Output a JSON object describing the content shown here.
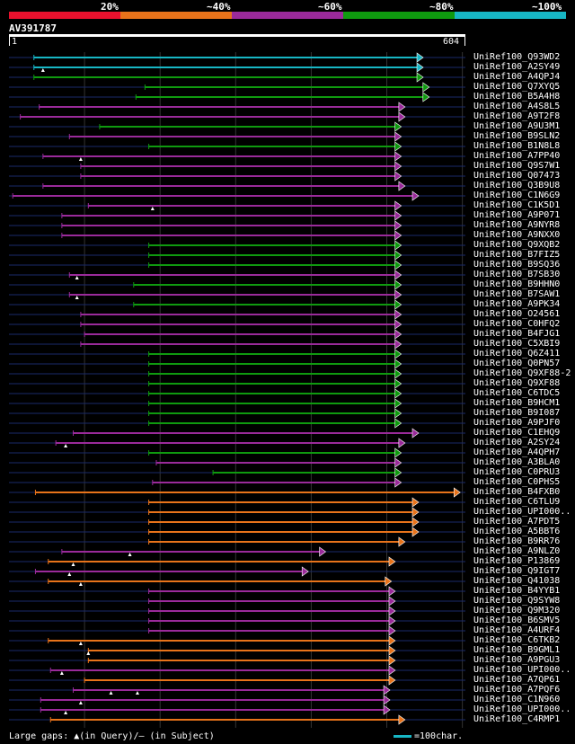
{
  "legend": {
    "labels": [
      "20%",
      "~40%",
      "~60%",
      "~80%",
      "~100%"
    ],
    "colors": [
      "#e8112d",
      "#e8731a",
      "#9a2a9a",
      "#0f9a0f",
      "#17b6c4"
    ]
  },
  "query": {
    "id": "AV391787",
    "start_label": "1",
    "end_label": "604",
    "length": 604
  },
  "hits": [
    {
      "name": "UniRef100_Q93WD2",
      "color": "cyan",
      "start": 33,
      "end": 547,
      "marks": []
    },
    {
      "name": "UniRef100_A2SY49",
      "color": "cyan",
      "start": 33,
      "end": 547,
      "marks": [
        45
      ]
    },
    {
      "name": "UniRef100_A4QPJ4",
      "color": "green",
      "start": 33,
      "end": 547,
      "marks": []
    },
    {
      "name": "UniRef100_Q7XYQ5",
      "color": "green",
      "start": 180,
      "end": 555,
      "marks": []
    },
    {
      "name": "UniRef100_B5A4H8",
      "color": "green",
      "start": 168,
      "end": 555,
      "marks": []
    },
    {
      "name": "UniRef100_A4S8L5",
      "color": "purple",
      "start": 40,
      "end": 523,
      "marks": []
    },
    {
      "name": "UniRef100_A9T2F8",
      "color": "purple",
      "start": 15,
      "end": 523,
      "marks": []
    },
    {
      "name": "UniRef100_A9U3M1",
      "color": "green",
      "start": 120,
      "end": 518,
      "marks": []
    },
    {
      "name": "UniRef100_B9SLN2",
      "color": "purple",
      "start": 80,
      "end": 518,
      "marks": []
    },
    {
      "name": "UniRef100_B1N8L8",
      "color": "green",
      "start": 185,
      "end": 518,
      "marks": []
    },
    {
      "name": "UniRef100_A7PP40",
      "color": "purple",
      "start": 45,
      "end": 518,
      "marks": [
        95
      ]
    },
    {
      "name": "UniRef100_Q9S7W1",
      "color": "purple",
      "start": 95,
      "end": 518,
      "marks": []
    },
    {
      "name": "UniRef100_Q07473",
      "color": "purple",
      "start": 95,
      "end": 518,
      "marks": []
    },
    {
      "name": "UniRef100_Q3B9U8",
      "color": "purple",
      "start": 45,
      "end": 523,
      "marks": []
    },
    {
      "name": "UniRef100_C1N6G9",
      "color": "purple",
      "start": 5,
      "end": 541,
      "marks": []
    },
    {
      "name": "UniRef100_C1K5D1",
      "color": "purple",
      "start": 105,
      "end": 518,
      "marks": [
        190
      ]
    },
    {
      "name": "UniRef100_A9P071",
      "color": "purple",
      "start": 70,
      "end": 518,
      "marks": []
    },
    {
      "name": "UniRef100_A9NYR8",
      "color": "purple",
      "start": 70,
      "end": 518,
      "marks": []
    },
    {
      "name": "UniRef100_A9NXX0",
      "color": "purple",
      "start": 70,
      "end": 518,
      "marks": []
    },
    {
      "name": "UniRef100_Q9XQB2",
      "color": "green",
      "start": 185,
      "end": 518,
      "marks": []
    },
    {
      "name": "UniRef100_B7FIZ5",
      "color": "green",
      "start": 185,
      "end": 518,
      "marks": []
    },
    {
      "name": "UniRef100_B9SQ36",
      "color": "green",
      "start": 185,
      "end": 518,
      "marks": []
    },
    {
      "name": "UniRef100_B7SB30",
      "color": "purple",
      "start": 80,
      "end": 518,
      "marks": [
        90
      ]
    },
    {
      "name": "UniRef100_B9HHN0",
      "color": "green",
      "start": 165,
      "end": 518,
      "marks": []
    },
    {
      "name": "UniRef100_B7SAW1",
      "color": "purple",
      "start": 80,
      "end": 518,
      "marks": [
        90
      ]
    },
    {
      "name": "UniRef100_A9PK34",
      "color": "green",
      "start": 165,
      "end": 518,
      "marks": []
    },
    {
      "name": "UniRef100_O24561",
      "color": "purple",
      "start": 95,
      "end": 518,
      "marks": []
    },
    {
      "name": "UniRef100_C0HFQ2",
      "color": "purple",
      "start": 95,
      "end": 518,
      "marks": []
    },
    {
      "name": "UniRef100_B4FJG1",
      "color": "purple",
      "start": 100,
      "end": 518,
      "marks": []
    },
    {
      "name": "UniRef100_C5XBI9",
      "color": "purple",
      "start": 95,
      "end": 518,
      "marks": []
    },
    {
      "name": "UniRef100_Q6Z411",
      "color": "green",
      "start": 185,
      "end": 518,
      "marks": []
    },
    {
      "name": "UniRef100_Q0PN57",
      "color": "green",
      "start": 185,
      "end": 518,
      "marks": []
    },
    {
      "name": "UniRef100_Q9XF88-2",
      "color": "green",
      "start": 185,
      "end": 518,
      "marks": []
    },
    {
      "name": "UniRef100_Q9XF88",
      "color": "green",
      "start": 185,
      "end": 518,
      "marks": []
    },
    {
      "name": "UniRef100_C6TDC5",
      "color": "green",
      "start": 185,
      "end": 518,
      "marks": []
    },
    {
      "name": "UniRef100_B9HCM1",
      "color": "green",
      "start": 185,
      "end": 518,
      "marks": []
    },
    {
      "name": "UniRef100_B9I087",
      "color": "green",
      "start": 185,
      "end": 518,
      "marks": []
    },
    {
      "name": "UniRef100_A9PJF0",
      "color": "green",
      "start": 185,
      "end": 518,
      "marks": []
    },
    {
      "name": "UniRef100_C1EHQ9",
      "color": "purple",
      "start": 85,
      "end": 541,
      "marks": []
    },
    {
      "name": "UniRef100_A2SY24",
      "color": "purple",
      "start": 62,
      "end": 523,
      "marks": [
        75
      ]
    },
    {
      "name": "UniRef100_A4QPH7",
      "color": "green",
      "start": 185,
      "end": 518,
      "marks": []
    },
    {
      "name": "UniRef100_A3BLA0",
      "color": "purple",
      "start": 195,
      "end": 518,
      "marks": []
    },
    {
      "name": "UniRef100_C0PRU3",
      "color": "green",
      "start": 270,
      "end": 518,
      "marks": []
    },
    {
      "name": "UniRef100_C0PHS5",
      "color": "purple",
      "start": 190,
      "end": 518,
      "marks": []
    },
    {
      "name": "UniRef100_B4FXB0",
      "color": "orange",
      "start": 35,
      "end": 596,
      "marks": []
    },
    {
      "name": "UniRef100_C6TLU9",
      "color": "orange",
      "start": 185,
      "end": 541,
      "marks": []
    },
    {
      "name": "UniRef100_UPI000..",
      "color": "orange",
      "start": 185,
      "end": 541,
      "marks": []
    },
    {
      "name": "UniRef100_A7PDT5",
      "color": "orange",
      "start": 185,
      "end": 541,
      "marks": []
    },
    {
      "name": "UniRef100_A5BBT6",
      "color": "orange",
      "start": 185,
      "end": 541,
      "marks": []
    },
    {
      "name": "UniRef100_B9RR76",
      "color": "orange",
      "start": 185,
      "end": 523,
      "marks": []
    },
    {
      "name": "UniRef100_A9NLZ0",
      "color": "purple",
      "start": 70,
      "end": 418,
      "marks": [
        160
      ]
    },
    {
      "name": "UniRef100_P13869",
      "color": "orange",
      "start": 52,
      "end": 510,
      "marks": [
        85
      ]
    },
    {
      "name": "UniRef100_Q9IGT7",
      "color": "purple",
      "start": 35,
      "end": 395,
      "marks": [
        80
      ]
    },
    {
      "name": "UniRef100_Q41038",
      "color": "orange",
      "start": 52,
      "end": 505,
      "marks": [
        95
      ]
    },
    {
      "name": "UniRef100_B4YYB1",
      "color": "purple",
      "start": 185,
      "end": 510,
      "marks": []
    },
    {
      "name": "UniRef100_Q9SYW8",
      "color": "purple",
      "start": 185,
      "end": 510,
      "marks": []
    },
    {
      "name": "UniRef100_Q9M320",
      "color": "purple",
      "start": 185,
      "end": 510,
      "marks": []
    },
    {
      "name": "UniRef100_B6SMV5",
      "color": "purple",
      "start": 185,
      "end": 510,
      "marks": []
    },
    {
      "name": "UniRef100_A4URF4",
      "color": "purple",
      "start": 185,
      "end": 510,
      "marks": []
    },
    {
      "name": "UniRef100_C6TKB2",
      "color": "orange",
      "start": 52,
      "end": 510,
      "marks": [
        95
      ]
    },
    {
      "name": "UniRef100_B9GML1",
      "color": "orange",
      "start": 105,
      "end": 510,
      "marks": [
        105
      ]
    },
    {
      "name": "UniRef100_A9PGU3",
      "color": "orange",
      "start": 105,
      "end": 510,
      "marks": []
    },
    {
      "name": "UniRef100_UPI000..",
      "color": "purple",
      "start": 55,
      "end": 510,
      "marks": [
        70
      ]
    },
    {
      "name": "UniRef100_A7QP61",
      "color": "orange",
      "start": 100,
      "end": 510,
      "marks": []
    },
    {
      "name": "UniRef100_A7PQF6",
      "color": "purple",
      "start": 85,
      "end": 503,
      "marks": [
        135,
        170
      ]
    },
    {
      "name": "UniRef100_C1N960",
      "color": "purple",
      "start": 42,
      "end": 503,
      "marks": [
        95
      ]
    },
    {
      "name": "UniRef100_UPI000..",
      "color": "purple",
      "start": 42,
      "end": 503,
      "marks": [
        75
      ]
    },
    {
      "name": "UniRef100_C4RMP1",
      "color": "orange",
      "start": 55,
      "end": 523,
      "marks": []
    }
  ],
  "footer": {
    "large_gaps_text": "Large gaps: ▲(in Query)/— (in Subject)",
    "scale_text": "=100char.",
    "scale_color": "#17b6c4"
  }
}
